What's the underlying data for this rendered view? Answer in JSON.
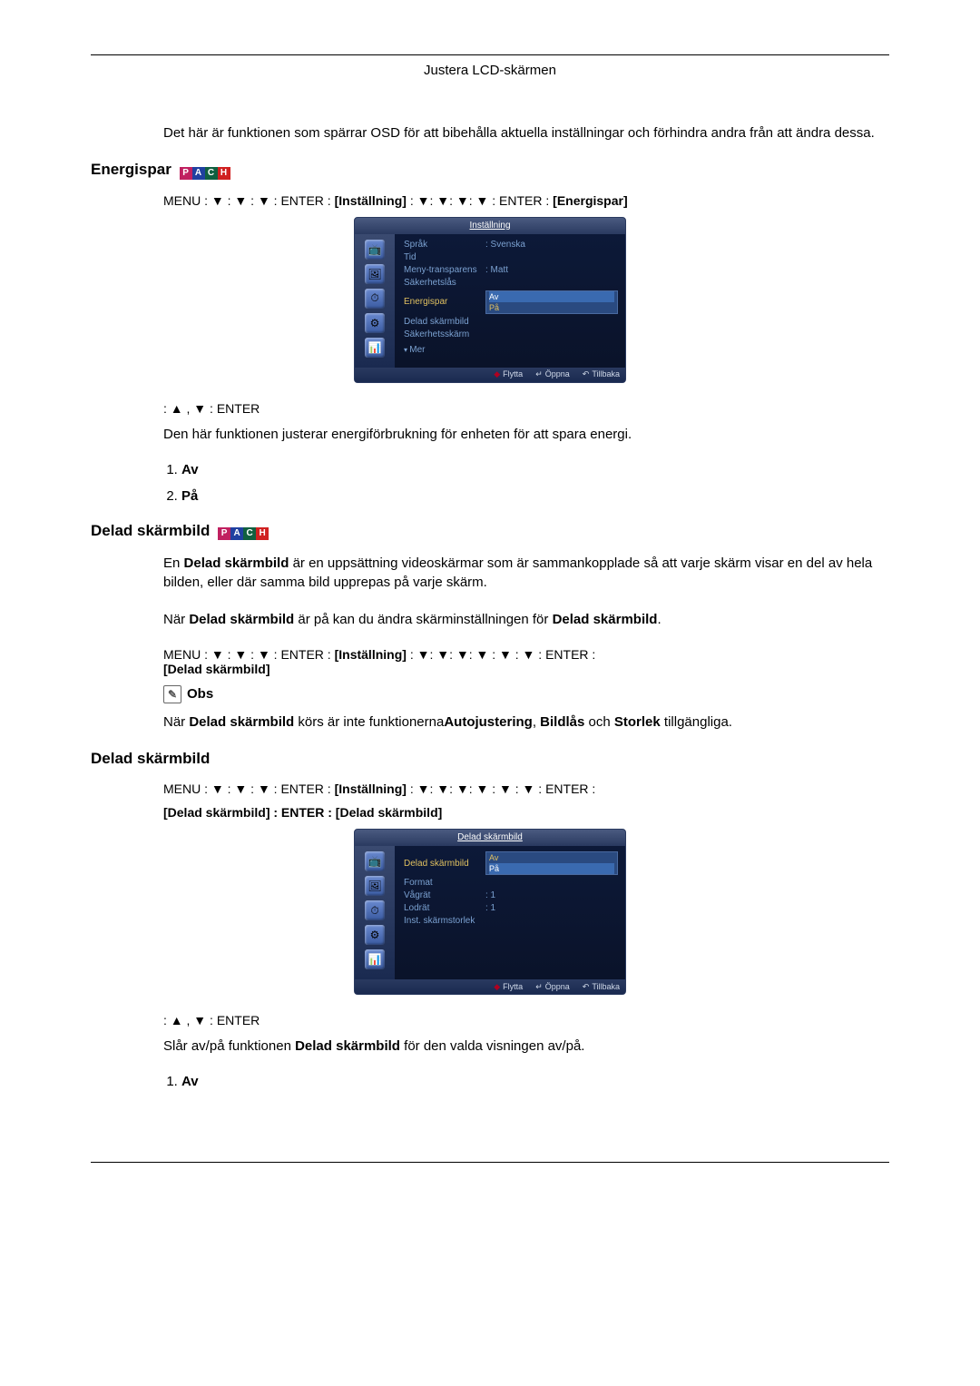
{
  "header": "Justera LCD-skärmen",
  "intro_text": "Det här är funktionen som spärrar OSD för att bibehålla aktuella inställningar och förhindra andra från att ändra dessa.",
  "section1": {
    "title": "Energispar",
    "pach": [
      "P",
      "A",
      "C",
      "H"
    ],
    "nav_prefix": "MENU : ▼ : ▼ : ▼ : ENTER :",
    "nav_mid": "[Inställning]",
    "nav_mid2": " : ▼: ▼: ▼: ▼ : ENTER :",
    "nav_end": "[Energispar]",
    "osd": {
      "title": "Inställning",
      "icons": [
        "📺",
        "🖼",
        "⏱",
        "⚙",
        "📊"
      ],
      "rows": [
        {
          "lbl": "Språk",
          "val": ": Svenska"
        },
        {
          "lbl": "Tid",
          "val": ""
        },
        {
          "lbl": "Meny-transparens",
          "val": ": Matt"
        },
        {
          "lbl": "Säkerhetslås",
          "val": ""
        },
        {
          "lbl": "Energispar",
          "val": "",
          "highlight": true,
          "dropdown": [
            "Av",
            "På"
          ]
        },
        {
          "lbl": "Delad skärmbild",
          "val": ""
        },
        {
          "lbl": "Säkerhetsskärm",
          "val": ""
        }
      ],
      "mer": "Mer",
      "footer": {
        "move": "Flytta",
        "open": "Öppna",
        "back": "Tillbaka"
      }
    },
    "post_nav": ": ▲ , ▼ : ENTER",
    "description": "Den här funktionen justerar energiförbrukning för enheten för att spara energi.",
    "options": [
      "Av",
      "På"
    ]
  },
  "section2": {
    "title": "Delad skärmbild",
    "pach": [
      "P",
      "A",
      "C",
      "H"
    ],
    "p1a": "En ",
    "p1b": "Delad skärmbild",
    "p1c": " är en uppsättning videoskärmar som är sammankopplade så att varje skärm visar en del av hela bilden, eller där samma bild upprepas på varje skärm.",
    "p2a": "När ",
    "p2b": "Delad skärmbild",
    "p2c": " är på kan du ändra skärminställningen för ",
    "p2d": "Delad skärmbild",
    "p2e": ".",
    "nav_prefix": "MENU : ▼ : ▼ : ▼ : ENTER :",
    "nav_mid": "[Inställning]",
    "nav_mid2": " : ▼: ▼: ▼: ▼ : ▼ : ▼ : ENTER :",
    "nav_end": "[Delad skärmbild]",
    "obs": "Obs",
    "p3a": "När ",
    "p3b": "Delad skärmbild",
    "p3c": " körs är inte funktionerna",
    "p3d": "Autojustering",
    "p3e": ", ",
    "p3f": "Bildlås",
    "p3g": "  och ",
    "p3h": "Storlek",
    "p3i": " tillgängliga."
  },
  "section3": {
    "title": "Delad skärmbild",
    "nav_prefix": "MENU : ▼ : ▼ : ▼ : ENTER :",
    "nav_mid": "[Inställning]",
    "nav_mid2": " : ▼: ▼: ▼: ▼ : ▼ : ▼ : ENTER :",
    "nav2": "[Delad skärmbild] : ENTER :  [Delad skärmbild]",
    "osd": {
      "title": "Delad skärmbild",
      "icons": [
        "📺",
        "🖼",
        "⏱",
        "⚙",
        "📊"
      ],
      "rows": [
        {
          "lbl": "Delad skärmbild",
          "val": "",
          "highlight": true,
          "dropdown": [
            "Av",
            "På"
          ]
        },
        {
          "lbl": "Format",
          "val": ""
        },
        {
          "lbl": "Vågrät",
          "val": ": 1"
        },
        {
          "lbl": "Lodrät",
          "val": ": 1"
        },
        {
          "lbl": "Inst. skärmstorlek",
          "val": ""
        }
      ],
      "footer": {
        "move": "Flytta",
        "open": "Öppna",
        "back": "Tillbaka"
      }
    },
    "post_nav": ": ▲ , ▼ : ENTER",
    "p1a": "Slår av/på funktionen ",
    "p1b": "Delad skärmbild",
    "p1c": " för den valda visningen av/på.",
    "options": [
      "Av"
    ]
  }
}
